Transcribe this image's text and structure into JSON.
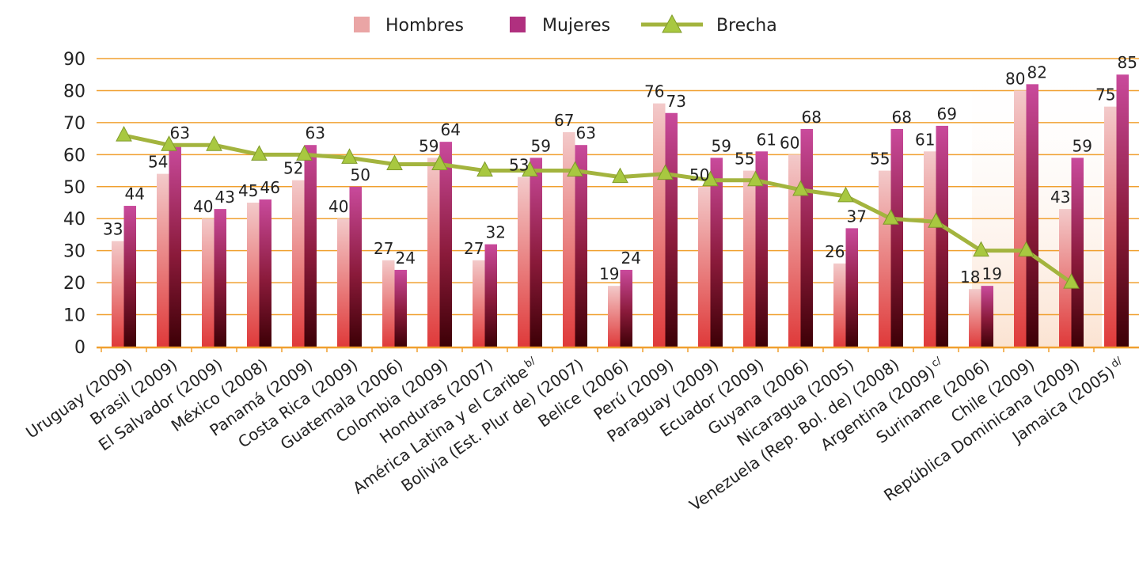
{
  "chart_data": {
    "type": "bar",
    "ylim": [
      0,
      90
    ],
    "yticks": [
      0,
      10,
      20,
      30,
      40,
      50,
      60,
      70,
      80,
      90
    ],
    "grid": "horizontal",
    "legend_position": "top-center",
    "legend": [
      {
        "label": "Hombres",
        "kind": "bar"
      },
      {
        "label": "Mujeres",
        "kind": "bar"
      },
      {
        "label": "Brecha",
        "kind": "line"
      }
    ],
    "categories": [
      {
        "label": "Uruguay (2009)",
        "sup": ""
      },
      {
        "label": "Brasil (2009)",
        "sup": ""
      },
      {
        "label": "El Salvador (2009)",
        "sup": ""
      },
      {
        "label": "México (2008)",
        "sup": ""
      },
      {
        "label": "Panamá (2009)",
        "sup": ""
      },
      {
        "label": "Costa Rica (2009)",
        "sup": ""
      },
      {
        "label": "Guatemala (2006)",
        "sup": ""
      },
      {
        "label": "Colombia (2009)",
        "sup": ""
      },
      {
        "label": "Honduras (2007)",
        "sup": ""
      },
      {
        "label": "América Latina y el Caribe",
        "sup": "b/"
      },
      {
        "label": "Bolivia (Est. Plur de) (2007)",
        "sup": ""
      },
      {
        "label": "Belice (2006)",
        "sup": ""
      },
      {
        "label": "Perú (2009)",
        "sup": ""
      },
      {
        "label": "Paraguay (2009)",
        "sup": ""
      },
      {
        "label": "Ecuador (2009)",
        "sup": ""
      },
      {
        "label": "Guyana (2006)",
        "sup": ""
      },
      {
        "label": "Nicaragua (2005)",
        "sup": ""
      },
      {
        "label": "Venezuela (Rep. Bol. de) (2008)",
        "sup": ""
      },
      {
        "label": "Argentina (2009)",
        "sup": "c/"
      },
      {
        "label": "Suriname (2006)",
        "sup": ""
      },
      {
        "label": "Chile (2009)",
        "sup": ""
      },
      {
        "label": "República Dominicana (2009)",
        "sup": ""
      },
      {
        "label": "Jamaica (2005)",
        "sup": "d/"
      }
    ],
    "series": [
      {
        "name": "Hombres",
        "type": "bar",
        "values": [
          33,
          54,
          40,
          45,
          52,
          40,
          27,
          59,
          27,
          53,
          67,
          19,
          76,
          50,
          55,
          60,
          26,
          55,
          61,
          18,
          80,
          43,
          75
        ]
      },
      {
        "name": "Mujeres",
        "type": "bar",
        "values": [
          44,
          63,
          43,
          46,
          63,
          50,
          24,
          64,
          32,
          59,
          63,
          24,
          73,
          59,
          61,
          68,
          37,
          68,
          69,
          19,
          82,
          59,
          85
        ]
      },
      {
        "name": "Brecha",
        "type": "line",
        "values": [
          66,
          63,
          63,
          60,
          60,
          59,
          57,
          57,
          55,
          55,
          55,
          53,
          54,
          52,
          52,
          49,
          47,
          40,
          39,
          30,
          30,
          20,
          null
        ]
      }
    ],
    "colors": {
      "hombres_top": "#f2c6c6",
      "hombres_bottom": "#e03a3a",
      "mujeres_top": "#c23f94",
      "mujeres_bottom": "#4a0008",
      "brecha_line": "#a3b43e",
      "brecha_marker": "#a8c840",
      "grid": "#f0a030",
      "axis": "#f0a030",
      "highlight": "#fde9dc"
    }
  }
}
